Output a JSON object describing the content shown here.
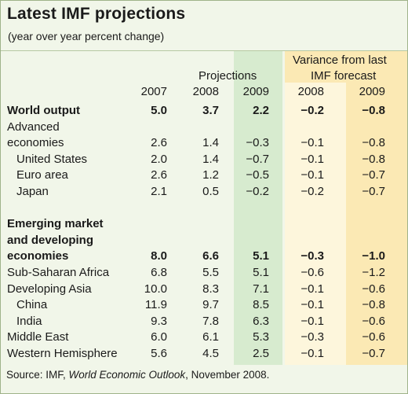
{
  "title": "Latest IMF projections",
  "subtitle": "(year over year percent change)",
  "header": {
    "projections_label": "Projections",
    "variance_label_1": "Variance from last",
    "variance_label_2": "IMF forecast",
    "years": [
      "2007",
      "2008",
      "2009",
      "2008",
      "2009"
    ]
  },
  "rows": [
    {
      "label": "World output",
      "bold": true,
      "v": [
        "5.0",
        "3.7",
        "2.2",
        "−0.2",
        "−0.8"
      ]
    },
    {
      "label": "Advanced",
      "v": [
        "",
        "",
        "",
        "",
        ""
      ]
    },
    {
      "label": "economies",
      "v": [
        "2.6",
        "1.4",
        "−0.3",
        "−0.1",
        "−0.8"
      ]
    },
    {
      "label": "United States",
      "indent": true,
      "v": [
        "2.0",
        "1.4",
        "−0.7",
        "−0.1",
        "−0.8"
      ]
    },
    {
      "label": "Euro area",
      "indent": true,
      "v": [
        "2.6",
        "1.2",
        "−0.5",
        "−0.1",
        "−0.7"
      ]
    },
    {
      "label": "Japan",
      "indent": true,
      "v": [
        "2.1",
        "0.5",
        "−0.2",
        "−0.2",
        "−0.7"
      ]
    },
    {
      "label": "",
      "v": [
        "",
        "",
        "",
        "",
        ""
      ]
    },
    {
      "label": "Emerging market",
      "bold": true,
      "v": [
        "",
        "",
        "",
        "",
        ""
      ]
    },
    {
      "label": "and developing",
      "bold": true,
      "v": [
        "",
        "",
        "",
        "",
        ""
      ]
    },
    {
      "label": "economies",
      "bold": true,
      "v": [
        "8.0",
        "6.6",
        "5.1",
        "−0.3",
        "−1.0"
      ]
    },
    {
      "label": "Sub-Saharan Africa",
      "v": [
        "6.8",
        "5.5",
        "5.1",
        "−0.6",
        "−1.2"
      ]
    },
    {
      "label": "Developing Asia",
      "v": [
        "10.0",
        "8.3",
        "7.1",
        "−0.1",
        "−0.6"
      ]
    },
    {
      "label": "China",
      "indent": true,
      "v": [
        "11.9",
        "9.7",
        "8.5",
        "−0.1",
        "−0.8"
      ]
    },
    {
      "label": "India",
      "indent": true,
      "v": [
        "9.3",
        "7.8",
        "6.3",
        "−0.1",
        "−0.6"
      ]
    },
    {
      "label": "Middle East",
      "v": [
        "6.0",
        "6.1",
        "5.3",
        "−0.3",
        "−0.6"
      ]
    },
    {
      "label": "Western Hemisphere",
      "v": [
        "5.6",
        "4.5",
        "2.5",
        "−0.1",
        "−0.7"
      ]
    }
  ],
  "source": {
    "prefix": "Source: IMF, ",
    "publication": "World Economic Outlook",
    "suffix": ", November 2008."
  },
  "colors": {
    "background": "#f1f6e9",
    "projection_2009": "#d7ebcf",
    "variance_2008": "#fdf6dc",
    "variance_2009": "#fbe9b4"
  }
}
